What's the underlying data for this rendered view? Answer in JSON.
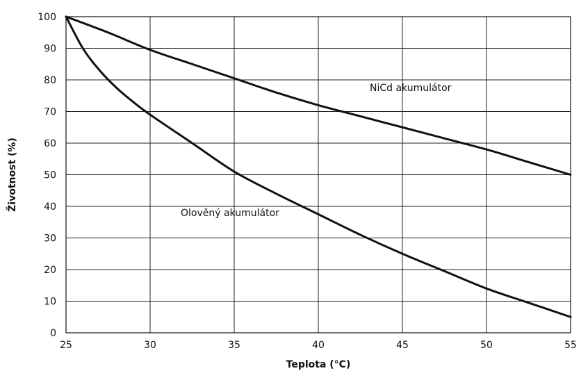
{
  "chart_data": {
    "type": "line",
    "title": "",
    "xlabel": "Teplota (°C)",
    "ylabel": "Životnost (%)",
    "xlim": [
      25,
      55
    ],
    "ylim": [
      0,
      100
    ],
    "x_ticks": [
      25,
      30,
      35,
      40,
      45,
      50,
      55
    ],
    "y_ticks": [
      0,
      10,
      20,
      30,
      40,
      50,
      60,
      70,
      80,
      90,
      100
    ],
    "grid": true,
    "legend": "none",
    "series": [
      {
        "name": "NiCd akumulátor",
        "x": [
          25,
          27.5,
          30,
          32.5,
          35,
          37.5,
          40,
          42.5,
          45,
          47.5,
          50,
          52.5,
          55
        ],
        "y": [
          100,
          95,
          89.5,
          85,
          80.5,
          76,
          72,
          68.5,
          65,
          61.5,
          58,
          54,
          50
        ]
      },
      {
        "name": "Olověný akumulátor",
        "x": [
          25,
          26,
          27,
          28,
          29,
          30,
          32.5,
          35,
          37.5,
          40,
          42.5,
          45,
          47.5,
          50,
          52.5,
          55
        ],
        "y": [
          100,
          90,
          83,
          77.5,
          73,
          69,
          60,
          51,
          44,
          37.5,
          31,
          25,
          19.5,
          14,
          9.5,
          5
        ]
      }
    ]
  }
}
